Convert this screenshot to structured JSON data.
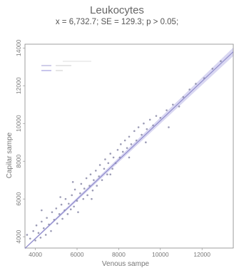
{
  "header": {
    "title": "Leukocytes",
    "stats": "x = 6,732.7; SE = 129.3;  p > 0.05;"
  },
  "chart_data": {
    "type": "scatter",
    "title": "Leukocytes",
    "subtitle": "x = 6,732.7; SE = 129.3;  p > 0.05;",
    "xlabel": "Venous sampe",
    "ylabel": "Capilar sampe",
    "xlim": [
      3500,
      13500
    ],
    "ylim": [
      3400,
      14200
    ],
    "xticks": [
      4000,
      6000,
      8000,
      10000,
      12000
    ],
    "yticks": [
      4000,
      6000,
      8000,
      10000,
      12000,
      14000
    ],
    "grid": false,
    "legend_position": "top-left",
    "regression_line": {
      "x0": 3500,
      "y0": 3380,
      "x1": 13500,
      "y1": 13800
    },
    "colors": {
      "points": "#8a8aa8",
      "line": "#8a86c8",
      "band": "#c9c6ec",
      "axis": "#888888"
    },
    "points": [
      {
        "x": 3600,
        "y": 4100
      },
      {
        "x": 3750,
        "y": 3900
      },
      {
        "x": 3900,
        "y": 4300
      },
      {
        "x": 4000,
        "y": 3800
      },
      {
        "x": 4050,
        "y": 4600
      },
      {
        "x": 4150,
        "y": 4200
      },
      {
        "x": 4250,
        "y": 3950
      },
      {
        "x": 4300,
        "y": 4800
      },
      {
        "x": 4400,
        "y": 4450
      },
      {
        "x": 4500,
        "y": 4100
      },
      {
        "x": 4550,
        "y": 5000
      },
      {
        "x": 4650,
        "y": 4650
      },
      {
        "x": 4750,
        "y": 4300
      },
      {
        "x": 4800,
        "y": 5300
      },
      {
        "x": 4900,
        "y": 4900
      },
      {
        "x": 5000,
        "y": 5500
      },
      {
        "x": 5050,
        "y": 4700
      },
      {
        "x": 5150,
        "y": 5200
      },
      {
        "x": 5250,
        "y": 5700
      },
      {
        "x": 5300,
        "y": 4950
      },
      {
        "x": 5400,
        "y": 5400
      },
      {
        "x": 5450,
        "y": 6000
      },
      {
        "x": 5550,
        "y": 5200
      },
      {
        "x": 5600,
        "y": 5750
      },
      {
        "x": 5700,
        "y": 5450
      },
      {
        "x": 5750,
        "y": 6200
      },
      {
        "x": 5850,
        "y": 5600
      },
      {
        "x": 5900,
        "y": 6500
      },
      {
        "x": 6000,
        "y": 5900
      },
      {
        "x": 6050,
        "y": 5300
      },
      {
        "x": 6150,
        "y": 6300
      },
      {
        "x": 6200,
        "y": 6800
      },
      {
        "x": 6300,
        "y": 6000
      },
      {
        "x": 6350,
        "y": 6550
      },
      {
        "x": 6450,
        "y": 7100
      },
      {
        "x": 6500,
        "y": 6200
      },
      {
        "x": 6600,
        "y": 6700
      },
      {
        "x": 6650,
        "y": 7300
      },
      {
        "x": 6750,
        "y": 6450
      },
      {
        "x": 6800,
        "y": 7000
      },
      {
        "x": 6900,
        "y": 7500
      },
      {
        "x": 6950,
        "y": 6700
      },
      {
        "x": 7050,
        "y": 7200
      },
      {
        "x": 7100,
        "y": 7800
      },
      {
        "x": 7200,
        "y": 7000
      },
      {
        "x": 7300,
        "y": 7600
      },
      {
        "x": 7350,
        "y": 8100
      },
      {
        "x": 7450,
        "y": 7300
      },
      {
        "x": 7500,
        "y": 7900
      },
      {
        "x": 7600,
        "y": 8400
      },
      {
        "x": 7700,
        "y": 7600
      },
      {
        "x": 7750,
        "y": 8200
      },
      {
        "x": 7850,
        "y": 7900
      },
      {
        "x": 7950,
        "y": 8600
      },
      {
        "x": 8050,
        "y": 8200
      },
      {
        "x": 8100,
        "y": 8900
      },
      {
        "x": 8200,
        "y": 8500
      },
      {
        "x": 8300,
        "y": 9100
      },
      {
        "x": 8400,
        "y": 8700
      },
      {
        "x": 8500,
        "y": 9300
      },
      {
        "x": 8600,
        "y": 8900
      },
      {
        "x": 8750,
        "y": 9600
      },
      {
        "x": 8850,
        "y": 9100
      },
      {
        "x": 8950,
        "y": 9800
      },
      {
        "x": 9100,
        "y": 9400
      },
      {
        "x": 9200,
        "y": 10000
      },
      {
        "x": 9350,
        "y": 9700
      },
      {
        "x": 9500,
        "y": 10200
      },
      {
        "x": 9650,
        "y": 9900
      },
      {
        "x": 9800,
        "y": 10400
      },
      {
        "x": 10000,
        "y": 10300
      },
      {
        "x": 10300,
        "y": 10700
      },
      {
        "x": 10600,
        "y": 11000
      },
      {
        "x": 10900,
        "y": 10900
      },
      {
        "x": 11100,
        "y": 11400
      },
      {
        "x": 11400,
        "y": 11800
      },
      {
        "x": 11700,
        "y": 12100
      },
      {
        "x": 12100,
        "y": 12400
      },
      {
        "x": 12500,
        "y": 12900
      },
      {
        "x": 12900,
        "y": 13300
      },
      {
        "x": 5800,
        "y": 6900
      },
      {
        "x": 6700,
        "y": 6000
      },
      {
        "x": 7600,
        "y": 7300
      },
      {
        "x": 8500,
        "y": 8200
      },
      {
        "x": 5200,
        "y": 6100
      },
      {
        "x": 4300,
        "y": 5400
      },
      {
        "x": 9300,
        "y": 9000
      },
      {
        "x": 10400,
        "y": 9800
      }
    ]
  }
}
